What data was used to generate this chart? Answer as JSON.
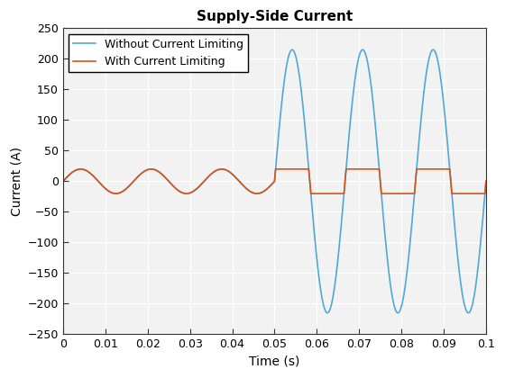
{
  "title": "Supply-Side Current",
  "xlabel": "Time (s)",
  "ylabel": "Current (A)",
  "ylim": [
    -250,
    250
  ],
  "xlim": [
    0,
    0.1
  ],
  "yticks": [
    -250,
    -200,
    -150,
    -100,
    -50,
    0,
    50,
    100,
    150,
    200,
    250
  ],
  "xticks": [
    0,
    0.01,
    0.02,
    0.03,
    0.04,
    0.05,
    0.06,
    0.07,
    0.08,
    0.09,
    0.1
  ],
  "xtick_labels": [
    "0",
    "0.01",
    "0.02",
    "0.03",
    "0.04",
    "0.05",
    "0.06",
    "0.07",
    "0.08",
    "0.09",
    "0.1"
  ],
  "blue_color": "#4FA8D5",
  "orange_color": "#D95319",
  "bg_color": "#FFFFFF",
  "plot_bg_color": "#F2F2F2",
  "grid_color": "#FFFFFF",
  "legend": [
    "Without Current Limiting",
    "With Current Limiting"
  ],
  "freq": 60,
  "amp_small": 20,
  "amp_large": 215,
  "fault_time": 0.05,
  "limit_level": 20,
  "line_width": 1.2,
  "title_fontsize": 11,
  "label_fontsize": 10,
  "tick_fontsize": 9,
  "legend_fontsize": 9
}
